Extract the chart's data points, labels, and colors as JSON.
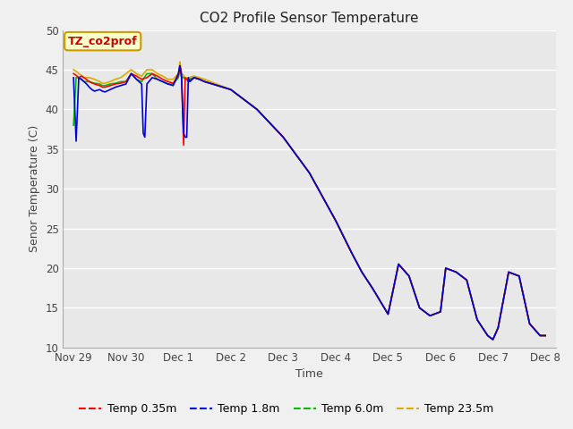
{
  "title": "CO2 Profile Sensor Temperature",
  "xlabel": "Time",
  "ylabel": "Senor Temperature (C)",
  "ylim": [
    10,
    50
  ],
  "xlim": [
    -0.2,
    9.2
  ],
  "annotation_text": "TZ_co2prof",
  "annotation_color": "#cc0000",
  "annotation_bg": "#ffffcc",
  "annotation_border": "#cc9900",
  "fig_facecolor": "#f0f0f0",
  "plot_facecolor": "#e8e8e8",
  "grid_color": "#ffffff",
  "series": {
    "temp_035": {
      "label": "Temp 0.35m",
      "color": "#ff0000",
      "lw": 1.2
    },
    "temp_18": {
      "label": "Temp 1.8m",
      "color": "#0000dd",
      "lw": 1.2
    },
    "temp_60": {
      "label": "Temp 6.0m",
      "color": "#00bb00",
      "lw": 1.2
    },
    "temp_235": {
      "label": "Temp 23.5m",
      "color": "#ddaa00",
      "lw": 1.2
    }
  },
  "xtick_labels": [
    "Nov 29",
    "Nov 30",
    "Dec 1",
    "Dec 2",
    "Dec 3",
    "Dec 4",
    "Dec 5",
    "Dec 6",
    "Dec 7",
    "Dec 8"
  ],
  "xtick_pos": [
    0,
    1,
    2,
    3,
    4,
    5,
    6,
    7,
    8,
    9
  ],
  "ytick_values": [
    10,
    15,
    20,
    25,
    30,
    35,
    40,
    45,
    50
  ],
  "t035": [
    0.0,
    0.05,
    0.1,
    0.15,
    0.2,
    0.3,
    0.4,
    0.5,
    0.55,
    0.6,
    0.7,
    0.8,
    0.9,
    1.0,
    1.1,
    1.2,
    1.3,
    1.4,
    1.5,
    1.6,
    1.7,
    1.8,
    1.9,
    2.0,
    2.03,
    2.06,
    2.1,
    2.13,
    2.16,
    2.2,
    2.3,
    2.4,
    2.5,
    3.0,
    3.5,
    4.0,
    4.5,
    5.0,
    5.3,
    5.5,
    5.7,
    6.0,
    6.2,
    6.4,
    6.5,
    6.6,
    6.8,
    7.0,
    7.1,
    7.3,
    7.5,
    7.7,
    7.9,
    8.0,
    8.1,
    8.3,
    8.5,
    8.7,
    8.9,
    9.0
  ],
  "v035": [
    44.5,
    44.3,
    44.0,
    44.2,
    44.0,
    43.5,
    43.2,
    43.0,
    42.8,
    42.8,
    43.0,
    43.2,
    43.3,
    43.5,
    44.5,
    44.2,
    43.8,
    44.0,
    44.5,
    44.2,
    43.8,
    43.5,
    43.3,
    44.2,
    45.5,
    44.5,
    35.5,
    44.0,
    43.8,
    43.5,
    44.0,
    43.8,
    43.5,
    42.5,
    40.0,
    36.5,
    32.0,
    26.0,
    22.0,
    19.5,
    17.5,
    14.2,
    20.5,
    19.0,
    17.0,
    15.0,
    14.0,
    14.5,
    20.0,
    19.5,
    18.5,
    13.5,
    11.5,
    11.0,
    12.5,
    19.5,
    19.0,
    13.0,
    11.5,
    11.5
  ],
  "t18": [
    0.0,
    0.05,
    0.1,
    0.15,
    0.2,
    0.25,
    0.3,
    0.35,
    0.4,
    0.5,
    0.55,
    0.6,
    0.7,
    0.8,
    0.9,
    1.0,
    1.1,
    1.2,
    1.3,
    1.33,
    1.36,
    1.4,
    1.5,
    1.6,
    1.7,
    1.8,
    1.9,
    2.0,
    2.03,
    2.06,
    2.1,
    2.13,
    2.16,
    2.19,
    2.22,
    2.3,
    2.4,
    2.5,
    3.0,
    3.5,
    4.0,
    4.5,
    5.0,
    5.3,
    5.5,
    5.7,
    6.0,
    6.2,
    6.4,
    6.5,
    6.6,
    6.8,
    7.0,
    7.1,
    7.3,
    7.5,
    7.7,
    7.9,
    8.0,
    8.1,
    8.3,
    8.5,
    8.7,
    8.9,
    9.0
  ],
  "v18": [
    44.0,
    36.0,
    44.0,
    43.8,
    43.5,
    43.2,
    42.8,
    42.5,
    42.3,
    42.5,
    42.3,
    42.2,
    42.5,
    42.8,
    43.0,
    43.2,
    44.5,
    43.8,
    43.2,
    37.0,
    36.5,
    43.2,
    44.0,
    43.8,
    43.5,
    43.2,
    43.0,
    44.5,
    45.5,
    44.0,
    37.0,
    36.5,
    36.5,
    44.0,
    43.5,
    44.0,
    43.8,
    43.5,
    42.5,
    40.0,
    36.5,
    32.0,
    26.0,
    22.0,
    19.5,
    17.5,
    14.2,
    20.5,
    19.0,
    17.0,
    15.0,
    14.0,
    14.5,
    20.0,
    19.5,
    18.5,
    13.5,
    11.5,
    11.0,
    12.5,
    19.5,
    19.0,
    13.0,
    11.5,
    11.5
  ],
  "t60": [
    0.0,
    0.05,
    0.1,
    0.15,
    0.2,
    0.3,
    0.4,
    0.5,
    0.55,
    0.6,
    0.7,
    0.8,
    0.9,
    1.0,
    1.1,
    1.2,
    1.3,
    1.4,
    1.5,
    1.6,
    1.7,
    1.8,
    1.9,
    2.0,
    2.03,
    2.06,
    2.1,
    2.13,
    2.2,
    2.3,
    2.4,
    2.5,
    3.0,
    3.5,
    4.0,
    4.5,
    5.0,
    5.3,
    5.5,
    5.7,
    6.0,
    6.2,
    6.4,
    6.5,
    6.6,
    6.8,
    7.0,
    7.1,
    7.3,
    7.5,
    7.7,
    7.9,
    8.0,
    8.1,
    8.3,
    8.5,
    8.7,
    8.9,
    9.0
  ],
  "v60": [
    38.0,
    44.0,
    44.0,
    43.8,
    43.5,
    43.5,
    43.3,
    43.2,
    43.0,
    43.0,
    43.2,
    43.3,
    43.5,
    43.5,
    44.5,
    43.8,
    43.5,
    44.5,
    44.5,
    43.8,
    43.5,
    43.2,
    43.2,
    44.0,
    45.5,
    44.2,
    44.0,
    43.8,
    43.8,
    44.0,
    43.8,
    43.5,
    42.5,
    40.0,
    36.5,
    32.0,
    26.0,
    22.0,
    19.5,
    17.5,
    14.2,
    20.5,
    19.0,
    17.0,
    15.0,
    14.0,
    14.5,
    20.0,
    19.5,
    18.5,
    13.5,
    11.5,
    11.0,
    12.5,
    19.5,
    19.0,
    13.0,
    11.5,
    11.5
  ],
  "t235": [
    0.0,
    0.05,
    0.1,
    0.15,
    0.2,
    0.3,
    0.4,
    0.5,
    0.55,
    0.6,
    0.7,
    0.8,
    0.9,
    1.0,
    1.1,
    1.2,
    1.3,
    1.4,
    1.5,
    1.6,
    1.7,
    1.8,
    1.9,
    2.0,
    2.03,
    2.06,
    2.1,
    2.13,
    2.2,
    2.3,
    2.4,
    2.5,
    3.0,
    3.5,
    4.0,
    4.5,
    5.0,
    5.3,
    5.5,
    5.7,
    6.0,
    6.2,
    6.4,
    6.5,
    6.6,
    6.8,
    7.0,
    7.1,
    7.3,
    7.5,
    7.7,
    7.9,
    8.0,
    8.1,
    8.3,
    8.5,
    8.7,
    8.9,
    9.0
  ],
  "v235": [
    45.0,
    44.8,
    44.5,
    44.3,
    44.0,
    44.0,
    43.8,
    43.5,
    43.3,
    43.3,
    43.5,
    43.8,
    44.0,
    44.5,
    45.0,
    44.5,
    44.2,
    45.0,
    45.0,
    44.5,
    44.2,
    43.8,
    43.8,
    44.5,
    46.0,
    44.5,
    44.3,
    44.0,
    44.0,
    44.2,
    44.0,
    43.8,
    42.5,
    40.0,
    36.5,
    32.0,
    26.0,
    22.0,
    19.5,
    17.5,
    14.2,
    20.5,
    19.0,
    17.0,
    15.0,
    14.0,
    14.5,
    20.0,
    19.5,
    18.5,
    13.5,
    11.5,
    11.0,
    12.5,
    19.5,
    19.0,
    13.0,
    11.5,
    11.5
  ]
}
